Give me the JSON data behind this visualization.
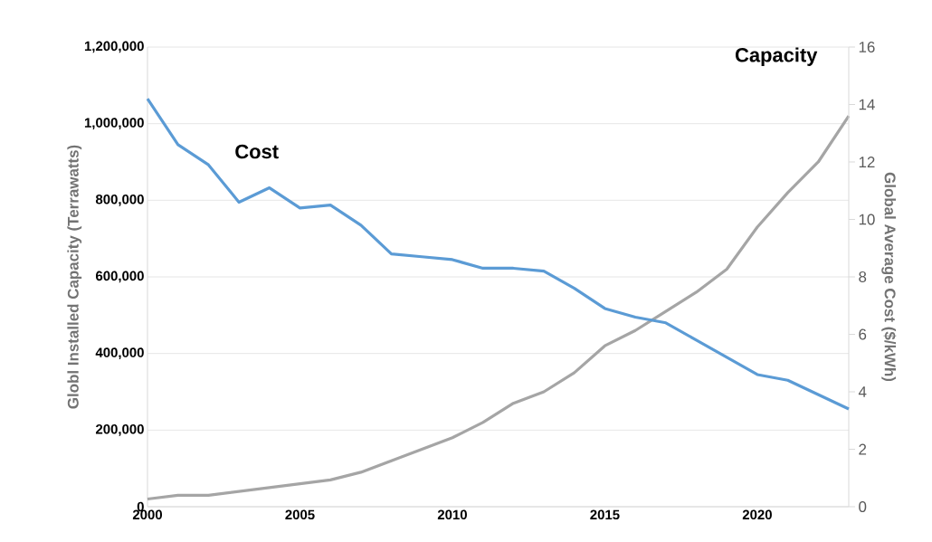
{
  "chart_data": {
    "type": "line",
    "x": [
      2000,
      2001,
      2002,
      2003,
      2004,
      2005,
      2006,
      2007,
      2008,
      2009,
      2010,
      2011,
      2012,
      2013,
      2014,
      2015,
      2016,
      2017,
      2018,
      2019,
      2020,
      2021,
      2022,
      2023
    ],
    "xlim": [
      2000,
      2023
    ],
    "xticks": [
      2000,
      2005,
      2010,
      2015,
      2020
    ],
    "ylabel": "Globl Installed Capacity (Terrawatts)",
    "y2label": "Global Average Cost ($/kWh)",
    "ylim": [
      0,
      1200000
    ],
    "yticks": [
      {
        "value": 0,
        "label": "0"
      },
      {
        "value": 200000,
        "label": "200,000"
      },
      {
        "value": 400000,
        "label": "400,000"
      },
      {
        "value": 600000,
        "label": "600,000"
      },
      {
        "value": 800000,
        "label": "800,000"
      },
      {
        "value": 1000000,
        "label": "1,000,000"
      },
      {
        "value": 1200000,
        "label": "1,200,000"
      }
    ],
    "y2lim": [
      0,
      16
    ],
    "y2ticks": [
      0,
      2,
      4,
      6,
      8,
      10,
      12,
      14,
      16
    ],
    "grid": "y",
    "line_style": "solid",
    "series": [
      {
        "name": "Cost",
        "color": "#5b9bd5",
        "axis": "y2",
        "values": [
          14.2,
          12.6,
          11.9,
          10.6,
          11.1,
          10.4,
          10.5,
          9.8,
          8.8,
          8.7,
          8.6,
          8.3,
          8.3,
          8.2,
          7.6,
          6.9,
          6.6,
          6.4,
          5.8,
          5.2,
          4.6,
          4.4,
          3.9,
          3.4
        ]
      },
      {
        "name": "Capacity",
        "color": "#a5a5a5",
        "values": [
          20000,
          30000,
          30000,
          40000,
          50000,
          60000,
          70000,
          90000,
          120000,
          150000,
          180000,
          220000,
          270000,
          300000,
          350000,
          420000,
          460000,
          510000,
          560000,
          620000,
          730000,
          820000,
          900000,
          1020000
        ]
      }
    ]
  }
}
